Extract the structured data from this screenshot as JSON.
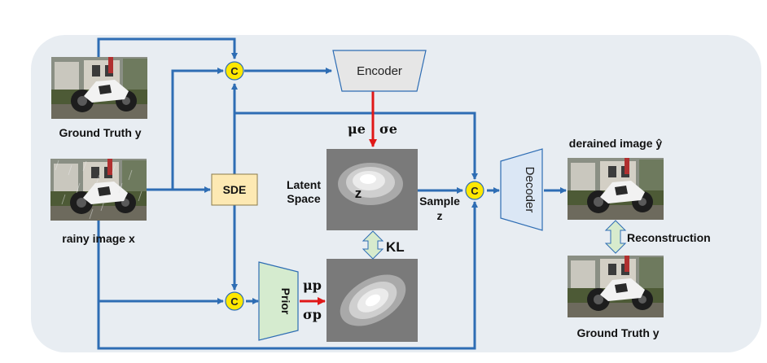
{
  "labels": {
    "ground_truth_top": "Ground Truth y",
    "rainy_image": "rainy image x",
    "sde": "SDE",
    "encoder": "Encoder",
    "prior": "Prior",
    "decoder": "Decoder",
    "latent_space_line1": "Latent",
    "latent_space_line2": "Space",
    "z_latent": "z",
    "sample_line1": "Sample",
    "sample_line2": "z",
    "kl": "KL",
    "mu_e": "μe",
    "sigma_e": "σe",
    "mu_p": "μp",
    "sigma_p": "σp",
    "derained_image": "derained image ŷ",
    "reconstruction": "Reconstruction",
    "ground_truth_bottom": "Ground Truth y",
    "concat": "C"
  },
  "colors": {
    "panel_bg": "#e8edf2",
    "arrow_blue": "#2e6db4",
    "arrow_red": "#e01818",
    "sde_fill": "#fde9b3",
    "encoder_fill": "#e6e6e6",
    "prior_fill": "#d5ebcf",
    "decoder_fill": "#dbe7f5",
    "concat_fill": "#ffe800",
    "kl_arrow_fill": "#d7ebcd"
  }
}
